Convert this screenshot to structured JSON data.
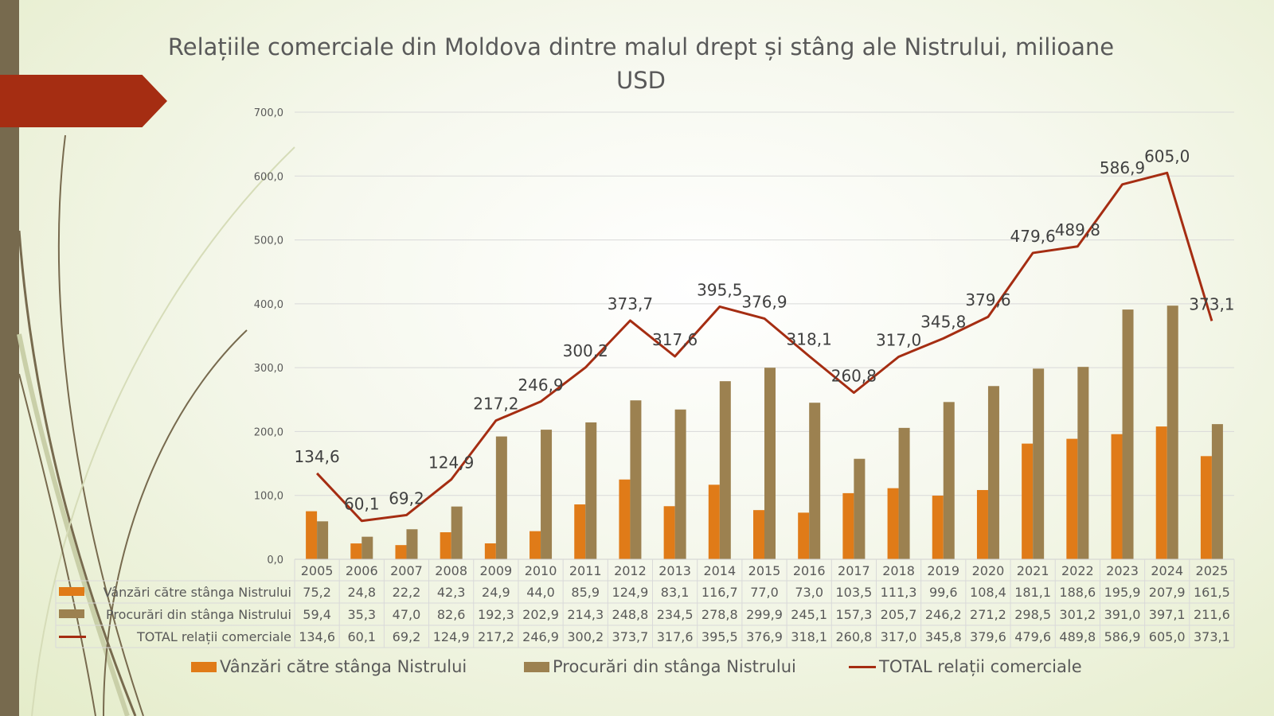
{
  "title": "Relațiile comerciale din Moldova dintre malul drept și stâng ale Nistrului, milioane USD",
  "chart_data": {
    "type": "bar+line",
    "title": "Relațiile comerciale din Moldova dintre malul drept și stâng ale Nistrului, milioane USD",
    "categories": [
      "2005",
      "2006",
      "2007",
      "2008",
      "2009",
      "2010",
      "2011",
      "2012",
      "2013",
      "2014",
      "2015",
      "2016",
      "2017",
      "2018",
      "2019",
      "2020",
      "2021",
      "2022",
      "2023",
      "2024",
      "2025"
    ],
    "series": [
      {
        "name": "Vânzări către stânga Nistrului",
        "type": "bar",
        "color": "#e07b18",
        "values": [
          75.2,
          24.8,
          22.2,
          42.3,
          24.9,
          44.0,
          85.9,
          124.9,
          83.1,
          116.7,
          77.0,
          73.0,
          103.5,
          111.3,
          99.6,
          108.4,
          181.1,
          188.6,
          195.9,
          207.9,
          161.5
        ]
      },
      {
        "name": "Procurări din stânga Nistrului",
        "type": "bar",
        "color": "#9c8150",
        "values": [
          59.4,
          35.3,
          47.0,
          82.6,
          192.3,
          202.9,
          214.3,
          248.8,
          234.5,
          278.8,
          299.9,
          245.1,
          157.3,
          205.7,
          246.2,
          271.2,
          298.5,
          301.2,
          391.0,
          397.1,
          211.6
        ]
      },
      {
        "name": "TOTAL relații comerciale",
        "type": "line",
        "color": "#a52d12",
        "values": [
          134.6,
          60.1,
          69.2,
          124.9,
          217.2,
          246.9,
          300.2,
          373.7,
          317.6,
          395.5,
          376.9,
          318.1,
          260.8,
          317.0,
          345.8,
          379.6,
          479.6,
          489.8,
          586.9,
          605.0,
          373.1
        ]
      }
    ],
    "yticks": [
      "0,0",
      "100,0",
      "200,0",
      "300,0",
      "400,0",
      "500,0",
      "600,0",
      "700,0"
    ],
    "ylim": [
      0,
      700
    ],
    "grid": true,
    "data_table": true,
    "legend": "bottom"
  }
}
